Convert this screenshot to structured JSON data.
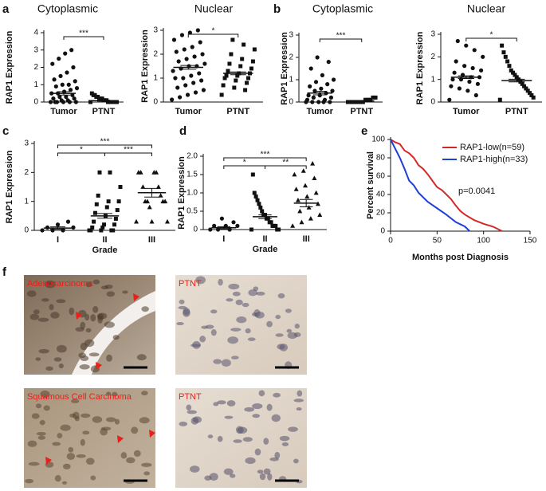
{
  "chart_data": [
    {
      "type": "dot",
      "title": "Cytoplasmic",
      "ylabel": "RAP1 Expression",
      "categories": [
        "Tumor",
        "PTNT"
      ],
      "markers": [
        "circle",
        "square"
      ],
      "values": [
        [
          0,
          0,
          0,
          0,
          0,
          0,
          0.1,
          0.1,
          0.2,
          0.2,
          0.3,
          0.3,
          0.4,
          0.5,
          0.5,
          0.6,
          0.7,
          0.8,
          0.9,
          1.0,
          1.0,
          1.2,
          1.3,
          1.5,
          1.7,
          2.0,
          2.2,
          2.5,
          2.8,
          3.0
        ],
        [
          0,
          0,
          0,
          0,
          0,
          0,
          0,
          0,
          0.1,
          0.1,
          0.1,
          0.2,
          0.2,
          0.2,
          0.3,
          0.3,
          0.4,
          0.4,
          0.5
        ]
      ],
      "means": [
        0.5,
        0.08
      ],
      "sems": [
        0.1,
        0.03
      ],
      "ylim": [
        0,
        4
      ],
      "yticks": [
        0,
        1,
        2,
        3,
        4
      ],
      "brackets": [
        {
          "between": [
            "Tumor",
            "PTNT"
          ],
          "label": "***"
        }
      ]
    },
    {
      "type": "dot",
      "title": "Nuclear",
      "ylabel": "RAP1 Expression",
      "categories": [
        "Tumor",
        "PTNT"
      ],
      "markers": [
        "circle",
        "square"
      ],
      "values": [
        [
          0.1,
          0.2,
          0.3,
          0.4,
          0.5,
          0.6,
          0.7,
          0.8,
          0.9,
          1.0,
          1.0,
          1.1,
          1.2,
          1.3,
          1.4,
          1.5,
          1.5,
          1.6,
          1.7,
          1.8,
          1.9,
          2.0,
          2.1,
          2.2,
          2.3,
          2.5,
          2.6,
          2.8,
          2.9,
          3.0
        ],
        [
          0.3,
          0.5,
          0.6,
          0.7,
          0.8,
          0.9,
          1.0,
          1.0,
          1.1,
          1.1,
          1.2,
          1.2,
          1.3,
          1.4,
          1.5,
          1.6,
          1.7,
          1.8,
          2.0,
          2.2,
          2.4,
          2.6
        ]
      ],
      "means": [
        1.45,
        1.2
      ],
      "sems": [
        0.08,
        0.06
      ],
      "ylim": [
        0,
        3
      ],
      "yticks": [
        0,
        1,
        2,
        3
      ],
      "brackets": [
        {
          "between": [
            "Tumor",
            "PTNT"
          ],
          "label": "*"
        }
      ]
    },
    {
      "type": "dot",
      "title": "Cytoplasmic",
      "ylabel": "RAP1 Expression",
      "categories": [
        "Tumor",
        "PTNT"
      ],
      "markers": [
        "circle",
        "square"
      ],
      "values": [
        [
          0,
          0,
          0,
          0,
          0,
          0.1,
          0.1,
          0.2,
          0.2,
          0.3,
          0.3,
          0.4,
          0.5,
          0.5,
          0.6,
          0.7,
          0.8,
          0.9,
          1.0,
          1.2,
          1.5,
          1.8,
          2.0
        ],
        [
          0,
          0,
          0,
          0,
          0,
          0,
          0,
          0.1,
          0.1,
          0.1,
          0.2,
          0.2
        ]
      ],
      "means": [
        0.4,
        0.05
      ],
      "sems": [
        0.08,
        0.02
      ],
      "ylim": [
        0,
        3
      ],
      "yticks": [
        0,
        1,
        2,
        3
      ],
      "brackets": [
        {
          "between": [
            "Tumor",
            "PTNT"
          ],
          "label": "***"
        }
      ]
    },
    {
      "type": "dot",
      "title": "Nuclear",
      "ylabel": "RAP1 Expression",
      "categories": [
        "Tumor",
        "PTNT"
      ],
      "markers": [
        "circle",
        "square"
      ],
      "values": [
        [
          0.1,
          0.3,
          0.5,
          0.6,
          0.7,
          0.8,
          0.9,
          1.0,
          1.0,
          1.1,
          1.1,
          1.2,
          1.3,
          1.4,
          1.5,
          1.6,
          1.8,
          2.0,
          2.3,
          2.5,
          2.7
        ],
        [
          0.1,
          0.2,
          0.3,
          0.4,
          0.5,
          0.6,
          0.7,
          0.8,
          0.9,
          1.0,
          1.1,
          1.2,
          1.3,
          1.4,
          1.6,
          1.8,
          2.0,
          2.2,
          2.5
        ]
      ],
      "means": [
        1.1,
        0.95
      ],
      "sems": [
        0.06,
        0.06
      ],
      "ylim": [
        0,
        3
      ],
      "yticks": [
        0,
        1,
        2,
        3
      ],
      "brackets": [
        {
          "between": [
            "Tumor",
            "PTNT"
          ],
          "label": "*"
        }
      ]
    },
    {
      "type": "dot",
      "xlabel": "Grade",
      "ylabel": "RAP1 Expression",
      "categories": [
        "I",
        "II",
        "III"
      ],
      "markers": [
        "circle",
        "square",
        "triangle"
      ],
      "values": [
        [
          0,
          0,
          0,
          0.1,
          0.1,
          0.2,
          0.3
        ],
        [
          0,
          0,
          0,
          0,
          0,
          0.1,
          0.1,
          0.2,
          0.2,
          0.3,
          0.4,
          0.5,
          0.6,
          0.7,
          0.8,
          0.9,
          1.0,
          1.0,
          1.2,
          1.5,
          2.0,
          2.0
        ],
        [
          0.3,
          0.3,
          0.3,
          0.8,
          1.0,
          1.0,
          1.0,
          1.0,
          1.2,
          1.5,
          1.5,
          2.0,
          2.0,
          2.0,
          2.0
        ]
      ],
      "means": [
        0.08,
        0.5,
        1.3
      ],
      "sems": [
        0.04,
        0.08,
        0.15
      ],
      "ylim": [
        0,
        3
      ],
      "yticks": [
        0,
        1,
        2,
        3
      ],
      "brackets": [
        {
          "between": [
            "I",
            "II"
          ],
          "label": "*"
        },
        {
          "between": [
            "II",
            "III"
          ],
          "label": "***"
        },
        {
          "between": [
            "I",
            "III"
          ],
          "label": "***"
        }
      ]
    },
    {
      "type": "dot",
      "xlabel": "Grade",
      "ylabel": "RAP1 Expression",
      "categories": [
        "I",
        "II",
        "III"
      ],
      "markers": [
        "circle",
        "square",
        "triangle"
      ],
      "values": [
        [
          0,
          0,
          0,
          0.1,
          0.1,
          0.1,
          0.2,
          0.3
        ],
        [
          0,
          0,
          0,
          0.1,
          0.1,
          0.1,
          0.2,
          0.2,
          0.3,
          0.3,
          0.4,
          0.4,
          0.5,
          0.6,
          0.7,
          0.8,
          0.9,
          1.0,
          1.5
        ],
        [
          0.1,
          0.2,
          0.3,
          0.4,
          0.5,
          0.6,
          0.7,
          0.8,
          0.9,
          1.0,
          1.1,
          1.2,
          1.4,
          1.5,
          1.6,
          1.8
        ]
      ],
      "means": [
        0.05,
        0.35,
        0.72
      ],
      "sems": [
        0.03,
        0.05,
        0.1
      ],
      "ylim": [
        0,
        2
      ],
      "yticks": [
        0,
        0.5,
        {
          "value": 1,
          "label": "1.0"
        },
        1.5,
        {
          "value": 2,
          "label": "2.0"
        }
      ],
      "brackets": [
        {
          "between": [
            "I",
            "II"
          ],
          "label": "*"
        },
        {
          "between": [
            "II",
            "III"
          ],
          "label": "**"
        },
        {
          "between": [
            "I",
            "III"
          ],
          "label": "***"
        }
      ]
    },
    {
      "type": "line",
      "xlabel": "Months post Diagnosis",
      "ylabel": "Percent survival",
      "annotation": "p=0.0041",
      "legend": "upper right",
      "xlim": [
        0,
        150
      ],
      "xticks": [
        0,
        50,
        100,
        150
      ],
      "ylim": [
        0,
        100
      ],
      "yticks": [
        0,
        20,
        40,
        60,
        80,
        100
      ],
      "series": [
        {
          "name": "RAP1-low(n=59)",
          "color": "#d62728",
          "x": [
            0,
            5,
            10,
            15,
            20,
            25,
            30,
            35,
            40,
            45,
            50,
            55,
            60,
            65,
            70,
            75,
            80,
            90,
            100,
            110,
            120
          ],
          "values": [
            100,
            97,
            95,
            88,
            85,
            80,
            72,
            68,
            62,
            55,
            48,
            45,
            40,
            35,
            28,
            22,
            18,
            12,
            8,
            5,
            0
          ]
        },
        {
          "name": "RAP1-high(n=33)",
          "color": "#1f3fd6",
          "x": [
            0,
            5,
            10,
            15,
            20,
            25,
            30,
            40,
            50,
            60,
            70,
            80,
            85
          ],
          "values": [
            100,
            90,
            80,
            68,
            55,
            50,
            42,
            32,
            25,
            18,
            10,
            5,
            0
          ]
        }
      ]
    }
  ],
  "figure": {
    "panel_labels": [
      "a",
      "b",
      "c",
      "d",
      "e",
      "f"
    ],
    "image_labels": [
      "Adenocarcinoma",
      "PTNT",
      "Squamous Cell Carcinoma",
      "PTNT"
    ]
  }
}
